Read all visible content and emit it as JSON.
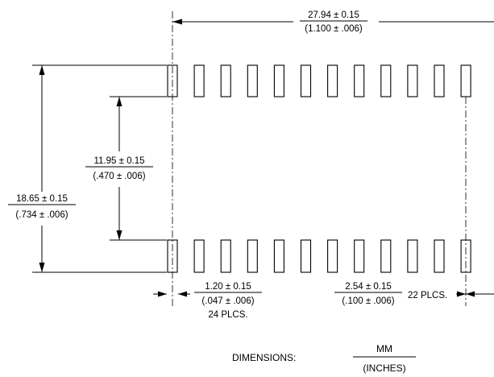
{
  "dimensions": {
    "overall_length": {
      "mm": "27.94 ± 0.15",
      "inches": "(1.100 ± .006)"
    },
    "overall_height": {
      "mm": "18.65 ± 0.15",
      "inches": "(.734 ± .006)"
    },
    "inner_gap": {
      "mm": "11.95 ± 0.15",
      "inches": "(.470 ± .006)"
    },
    "pad_width": {
      "mm": "1.20 ± 0.15",
      "inches": "(.047 ± .006)",
      "count": "24 PLCS."
    },
    "pitch": {
      "mm": "2.54 ± 0.15",
      "inches": "(.100 ± .006)",
      "count": "22 PLCS."
    }
  },
  "legend": {
    "label": "DIMENSIONS:",
    "unit_top": "MM",
    "unit_bottom": "(INCHES)"
  },
  "pads": {
    "per_row": 12,
    "rows": 2
  }
}
